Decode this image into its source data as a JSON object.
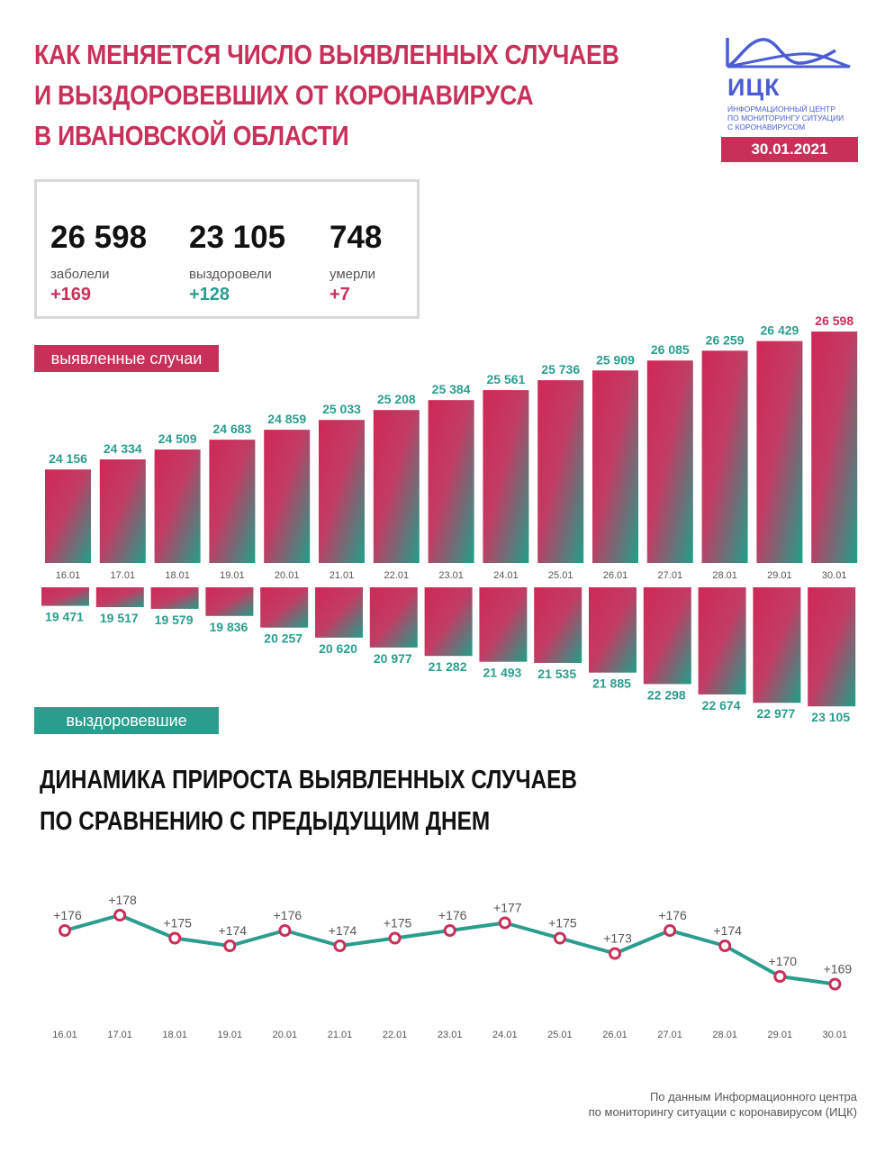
{
  "header": {
    "title_lines": [
      "КАК МЕНЯЕТСЯ ЧИСЛО ВЫЯВЛЕННЫХ СЛУЧАЕВ",
      "И ВЫЗДОРОВЕВШИХ ОТ КОРОНАВИРУСА",
      "В ИВАНОВСКОЙ ОБЛАСТИ"
    ],
    "logo_name": "ИЦК",
    "logo_sub": [
      "ИНФОРМАЦИОННЫЙ ЦЕНТР",
      "ПО МОНИТОРИНГУ СИТУАЦИИ",
      "С КОРОНАВИРУСОМ"
    ],
    "date": "30.01.2021"
  },
  "summary": {
    "cases": {
      "value": "26 598",
      "label": "заболели",
      "delta": "+169"
    },
    "recovered": {
      "value": "23 105",
      "label": "выздоровели",
      "delta": "+128"
    },
    "deaths": {
      "value": "748",
      "label": "умерли",
      "delta": "+7"
    }
  },
  "labels": {
    "cases_tag": "выявленные случаи",
    "recovered_tag": "выздоровевшие",
    "dynamics_title": [
      "ДИНАМИКА ПРИРОСТА ВЫЯВЛЕННЫХ СЛУЧАЕВ",
      "ПО СРАВНЕНИЮ С ПРЕДЫДУЩИМ ДНЕМ"
    ]
  },
  "source": [
    "По данным Информационного центра",
    "по мониторингу ситуации с коронавирусом (ИЦК)"
  ],
  "colors": {
    "accent_red": "#c8305a",
    "accent_teal": "#2a9d8f",
    "logo_blue": "#4a5dd6",
    "label_gray": "#555555"
  },
  "chart_data": [
    {
      "type": "bar",
      "categories": [
        "16.01",
        "17.01",
        "18.01",
        "19.01",
        "20.01",
        "21.01",
        "22.01",
        "23.01",
        "24.01",
        "25.01",
        "26.01",
        "27.01",
        "28.01",
        "29.01",
        "30.01"
      ],
      "series": [
        {
          "name": "выявленные случаи",
          "values": [
            24156,
            24334,
            24509,
            24683,
            24859,
            25033,
            25208,
            25384,
            25561,
            25736,
            25909,
            26085,
            26259,
            26429,
            26598
          ]
        }
      ],
      "value_labels": [
        "24 156",
        "24 334",
        "24 509",
        "24 683",
        "24 859",
        "25 033",
        "25 208",
        "25 384",
        "25 561",
        "25 736",
        "25 909",
        "26 085",
        "26 259",
        "26 429",
        "26 598"
      ]
    },
    {
      "type": "bar",
      "categories": [
        "16.01",
        "17.01",
        "18.01",
        "19.01",
        "20.01",
        "21.01",
        "22.01",
        "23.01",
        "24.01",
        "25.01",
        "26.01",
        "27.01",
        "28.01",
        "29.01",
        "30.01"
      ],
      "series": [
        {
          "name": "выздоровевшие",
          "values": [
            19471,
            19517,
            19579,
            19836,
            20257,
            20620,
            20977,
            21282,
            21493,
            21535,
            21885,
            22298,
            22674,
            22977,
            23105
          ]
        }
      ],
      "value_labels": [
        "19 471",
        "19 517",
        "19 579",
        "19 836",
        "20 257",
        "20 620",
        "20 977",
        "21 282",
        "21 493",
        "21 535",
        "21 885",
        "22 298",
        "22 674",
        "22 977",
        "23 105"
      ]
    },
    {
      "type": "line",
      "x": [
        "16.01",
        "17.01",
        "18.01",
        "19.01",
        "20.01",
        "21.01",
        "22.01",
        "23.01",
        "24.01",
        "25.01",
        "26.01",
        "27.01",
        "28.01",
        "29.01",
        "30.01"
      ],
      "series": [
        {
          "values": [
            176,
            178,
            175,
            174,
            176,
            174,
            175,
            176,
            177,
            175,
            173,
            176,
            174,
            170,
            169
          ]
        }
      ],
      "value_labels": [
        "+176",
        "+178",
        "+175",
        "+174",
        "+176",
        "+174",
        "+175",
        "+176",
        "+177",
        "+175",
        "+173",
        "+176",
        "+174",
        "+170",
        "+169"
      ]
    }
  ]
}
